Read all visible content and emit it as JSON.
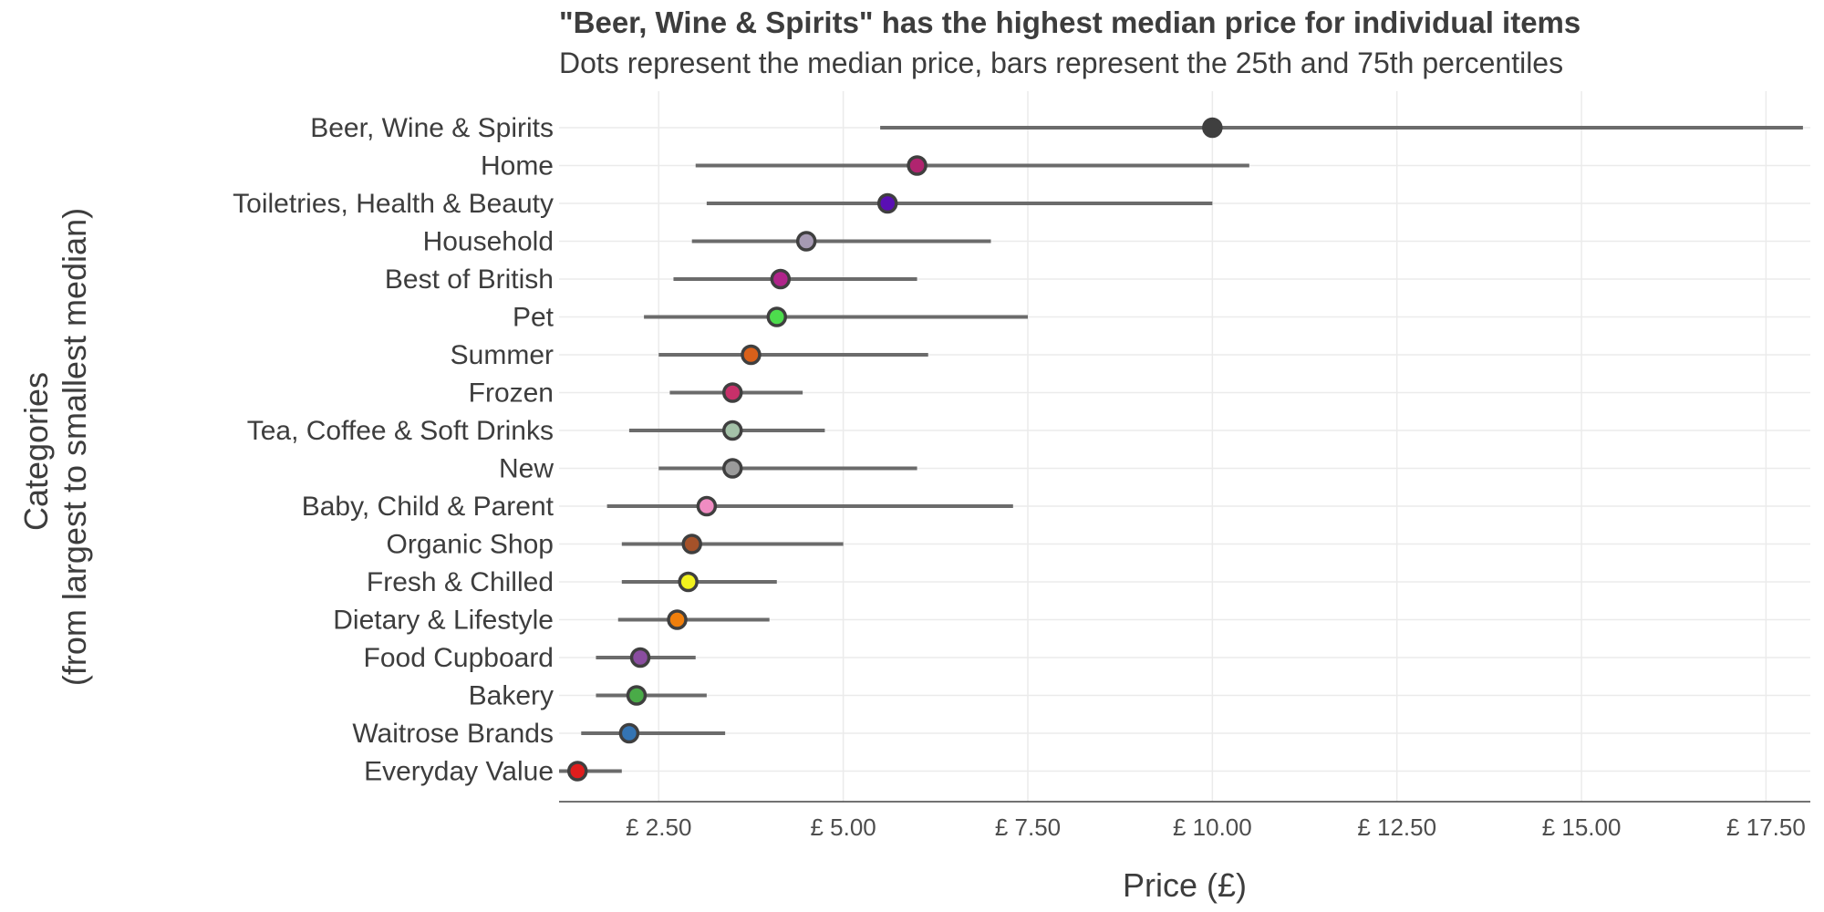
{
  "chart_data": {
    "type": "dot-range",
    "title": "\"Beer, Wine & Spirits\" has the highest median price for individual items",
    "subtitle": "Dots represent the median price, bars represent the 25th and 75th percentiles",
    "xlabel": "Price (£)",
    "ylabel_lines": [
      "Categories",
      "(from largest to smallest median)"
    ],
    "xlim": [
      1.15,
      18.1
    ],
    "xticks": [
      2.5,
      5,
      7.5,
      10,
      12.5,
      15,
      17.5
    ],
    "xtick_labels": [
      "£ 2.50",
      "£ 5.00",
      "£ 7.50",
      "£ 10.00",
      "£ 12.50",
      "£ 15.00",
      "£ 17.50"
    ],
    "grid": true,
    "categories": [
      {
        "name": "Beer, Wine & Spirits",
        "median": 10.0,
        "p25": 5.5,
        "p75": 18.0,
        "color": "#3f3f3f"
      },
      {
        "name": "Home",
        "median": 6.0,
        "p25": 3.0,
        "p75": 10.5,
        "color": "#b0246f"
      },
      {
        "name": "Toiletries, Health & Beauty",
        "median": 5.6,
        "p25": 3.15,
        "p75": 10.0,
        "color": "#5a0fb4"
      },
      {
        "name": "Household",
        "median": 4.5,
        "p25": 2.95,
        "p75": 7.0,
        "color": "#a69ab3"
      },
      {
        "name": "Best of British",
        "median": 4.15,
        "p25": 2.7,
        "p75": 6.0,
        "color": "#b0248a"
      },
      {
        "name": "Pet",
        "median": 4.1,
        "p25": 2.3,
        "p75": 7.5,
        "color": "#4ddc4d"
      },
      {
        "name": "Summer",
        "median": 3.75,
        "p25": 2.5,
        "p75": 6.15,
        "color": "#d9601a"
      },
      {
        "name": "Frozen",
        "median": 3.5,
        "p25": 2.65,
        "p75": 4.45,
        "color": "#c8306a"
      },
      {
        "name": "Tea, Coffee & Soft Drinks",
        "median": 3.5,
        "p25": 2.1,
        "p75": 4.75,
        "color": "#a4c2a8"
      },
      {
        "name": "New",
        "median": 3.5,
        "p25": 2.5,
        "p75": 6.0,
        "color": "#9a9a9a"
      },
      {
        "name": "Baby, Child & Parent",
        "median": 3.15,
        "p25": 1.8,
        "p75": 7.3,
        "color": "#f08cc2"
      },
      {
        "name": "Organic Shop",
        "median": 2.95,
        "p25": 2.0,
        "p75": 5.0,
        "color": "#a5522a"
      },
      {
        "name": "Fresh & Chilled",
        "median": 2.9,
        "p25": 2.0,
        "p75": 4.1,
        "color": "#f2f21e"
      },
      {
        "name": "Dietary & Lifestyle",
        "median": 2.75,
        "p25": 1.95,
        "p75": 4.0,
        "color": "#f07f0c"
      },
      {
        "name": "Food Cupboard",
        "median": 2.25,
        "p25": 1.65,
        "p75": 3.0,
        "color": "#8a4da0"
      },
      {
        "name": "Bakery",
        "median": 2.2,
        "p25": 1.65,
        "p75": 3.15,
        "color": "#4aab48"
      },
      {
        "name": "Waitrose Brands",
        "median": 2.1,
        "p25": 1.45,
        "p75": 3.4,
        "color": "#3474b3"
      },
      {
        "name": "Everyday Value",
        "median": 1.4,
        "p25": 1.15,
        "p75": 2.0,
        "color": "#e01d1d"
      }
    ]
  }
}
